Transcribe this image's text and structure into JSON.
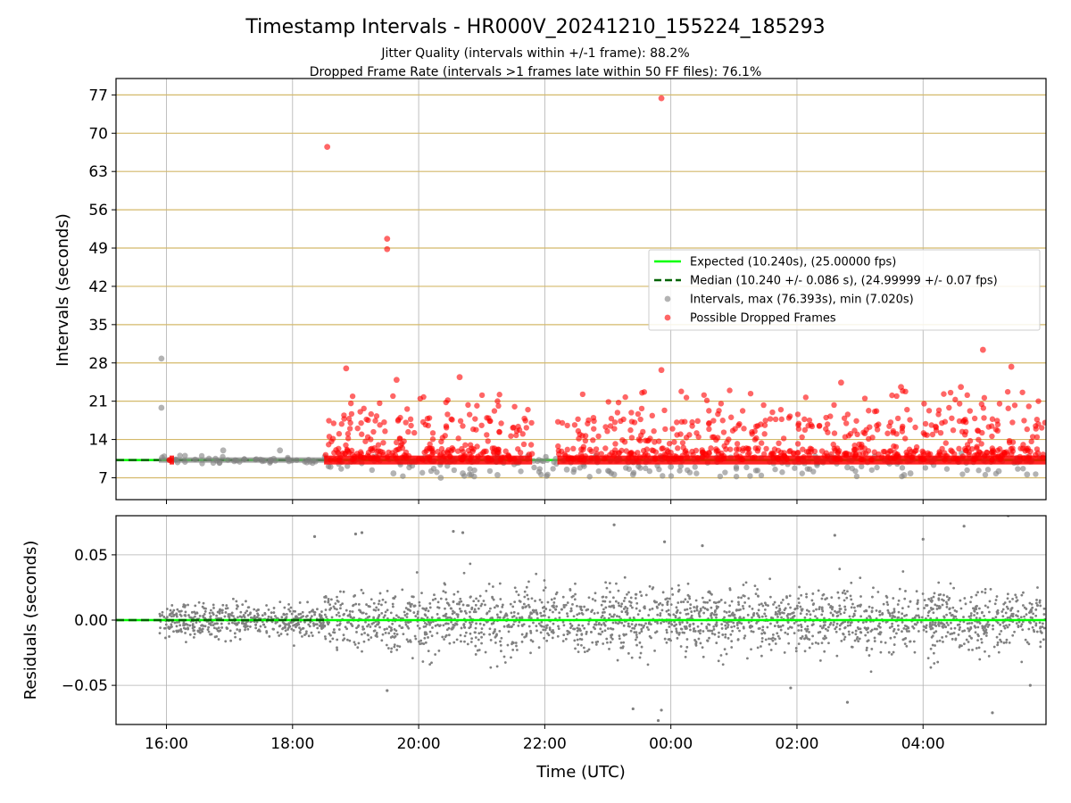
{
  "chart_data": [
    {
      "type": "scatter",
      "title": "Timestamp Intervals - HR000V_20241210_155224_185293",
      "subtitle_1": "Jitter Quality (intervals within +/-1 frame): 88.2%",
      "subtitle_2": "Dropped Frame Rate (intervals >1 frames late within 50 FF files): 76.1%",
      "xlabel": "",
      "ylabel": "Intervals (seconds)",
      "xlim_hours": [
        15.2,
        29.95
      ],
      "ylim": [
        3,
        80
      ],
      "yticks": [
        7,
        14,
        21,
        28,
        35,
        42,
        49,
        56,
        63,
        70,
        77
      ],
      "ytick_labels": [
        "7",
        "14",
        "21",
        "28",
        "35",
        "42",
        "49",
        "56",
        "63",
        "70",
        "77"
      ],
      "xticks_hours": [
        16,
        18,
        20,
        22,
        24,
        26,
        28
      ],
      "grid": true,
      "horizontal_gridline_color": "#d4b96a",
      "legend_position": "right",
      "legend": [
        {
          "label": "Expected (10.240s), (25.00000 fps)",
          "style": "solid-line",
          "color": "#00ff00"
        },
        {
          "label": "Median (10.240 +/- 0.086 s), (24.99999 +/- 0.07 fps)",
          "style": "dashed-line",
          "color": "#006400"
        },
        {
          "label": "Intervals, max (76.393s), min (7.020s)",
          "style": "marker",
          "color": "#808080"
        },
        {
          "label": "Possible Dropped Frames",
          "style": "marker",
          "color": "#ff0000"
        }
      ],
      "series": [
        {
          "name": "Expected (10.240s), (25.00000 fps)",
          "kind": "line",
          "y": 10.24
        },
        {
          "name": "Median (10.240 +/- 0.086 s), (24.99999 +/- 0.07 fps)",
          "kind": "line",
          "y": 10.24
        },
        {
          "name": "Intervals, max (76.393s), min (7.020s)",
          "kind": "scatter",
          "baseline": 10.24,
          "x_range_hours": [
            15.88,
            29.95
          ],
          "notable_points": [
            [
              15.92,
              28.8
            ],
            [
              15.92,
              19.8
            ],
            [
              16.9,
              12.0
            ],
            [
              17.8,
              12.0
            ],
            [
              18.6,
              9.0
            ],
            [
              19.6,
              7.8
            ],
            [
              20.35,
              7.0
            ],
            [
              20.7,
              7.8
            ],
            [
              21.25,
              7.5
            ],
            [
              22.35,
              8.5
            ],
            [
              23.1,
              7.6
            ],
            [
              23.4,
              7.6
            ],
            [
              24.0,
              9.0
            ],
            [
              26.8,
              8.9
            ],
            [
              27.7,
              7.5
            ],
            [
              27.8,
              7.8
            ],
            [
              29.2,
              8.2
            ],
            [
              29.65,
              7.6
            ]
          ]
        },
        {
          "name": "Possible Dropped Frames",
          "kind": "scatter",
          "x_range_hours": [
            16.05,
            29.95
          ],
          "gap_hours": [
            21.8,
            22.2
          ],
          "notable_points": [
            [
              18.55,
              67.5
            ],
            [
              19.5,
              50.7
            ],
            [
              19.5,
              48.8
            ],
            [
              23.85,
              76.39
            ],
            [
              18.85,
              27.0
            ],
            [
              23.85,
              26.7
            ],
            [
              28.95,
              30.4
            ],
            [
              20.65,
              25.4
            ],
            [
              19.65,
              24.9
            ],
            [
              26.7,
              24.4
            ],
            [
              27.65,
              23.6
            ],
            [
              28.6,
              23.6
            ],
            [
              29.4,
              27.3
            ]
          ]
        }
      ]
    },
    {
      "type": "scatter",
      "xlabel": "Time (UTC)",
      "ylabel": "Residuals (seconds)",
      "xlim_hours": [
        15.2,
        29.95
      ],
      "ylim": [
        -0.08,
        0.08
      ],
      "yticks": [
        -0.05,
        0.0,
        0.05
      ],
      "ytick_labels": [
        "−0.05",
        "0.00",
        "0.05"
      ],
      "xticks_hours": [
        16,
        18,
        20,
        22,
        24,
        26,
        28
      ],
      "xtick_labels": [
        "16:00",
        "18:00",
        "20:00",
        "22:00",
        "00:00",
        "02:00",
        "04:00"
      ],
      "grid": true,
      "series": [
        {
          "name": "",
          "kind": "line",
          "y": 0.0,
          "color": "#00ff00"
        },
        {
          "name": "",
          "kind": "scatter",
          "color": "#808080",
          "x_range_hours": [
            15.88,
            29.95
          ],
          "spread_std": 0.012,
          "notable_points": [
            [
              18.35,
              0.064
            ],
            [
              19.0,
              0.066
            ],
            [
              19.1,
              0.067
            ],
            [
              20.55,
              0.068
            ],
            [
              20.7,
              0.067
            ],
            [
              23.1,
              0.073
            ],
            [
              23.9,
              0.06
            ],
            [
              24.5,
              0.057
            ],
            [
              26.6,
              0.065
            ],
            [
              28.0,
              0.062
            ],
            [
              28.65,
              0.072
            ],
            [
              29.35,
              0.08
            ],
            [
              23.4,
              -0.068
            ],
            [
              23.8,
              -0.077
            ],
            [
              23.85,
              -0.069
            ],
            [
              29.1,
              -0.071
            ],
            [
              26.8,
              -0.063
            ],
            [
              19.5,
              -0.054
            ],
            [
              25.9,
              -0.052
            ],
            [
              29.7,
              -0.05
            ]
          ]
        }
      ]
    }
  ]
}
